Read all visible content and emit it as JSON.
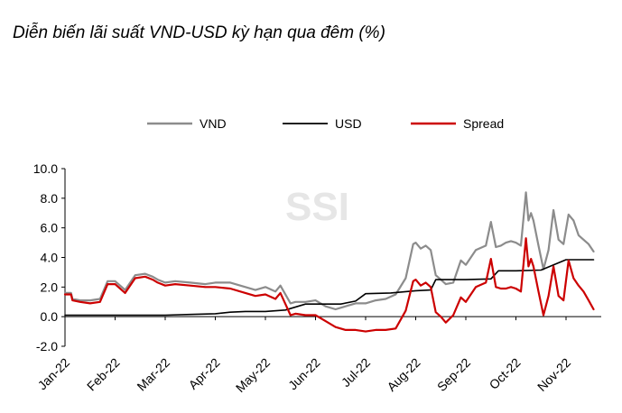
{
  "chart_data": {
    "type": "line",
    "title": "Diễn biến lãi suất VND-USD kỳ hạn qua đêm (%)",
    "watermark": "SSI",
    "xlabel": "",
    "ylabel": "",
    "ylim": [
      -2,
      10
    ],
    "yticks": [
      "10.0",
      "8.0",
      "6.0",
      "4.0",
      "2.0",
      "0.0",
      "-2.0"
    ],
    "ytick_values": [
      10,
      8,
      6,
      4,
      2,
      0,
      -2
    ],
    "xlim": [
      0,
      10.55
    ],
    "categories": [
      "Jan-22",
      "Feb-22",
      "Mar-22",
      "Apr-22",
      "May-22",
      "Jun-22",
      "Jul-22",
      "Aug-22",
      "Sep-22",
      "Oct-22",
      "Nov-22"
    ],
    "legend_position": "top",
    "series": [
      {
        "name": "VND",
        "color": "#8c8c8c",
        "x": [
          0,
          0.12,
          0.15,
          0.3,
          0.5,
          0.7,
          0.85,
          1.0,
          1.2,
          1.4,
          1.6,
          1.75,
          1.85,
          2.0,
          2.2,
          2.5,
          2.8,
          3.0,
          3.3,
          3.6,
          3.8,
          4.0,
          4.2,
          4.3,
          4.5,
          4.6,
          4.8,
          5.0,
          5.2,
          5.4,
          5.6,
          5.8,
          6.0,
          6.2,
          6.4,
          6.6,
          6.8,
          6.95,
          7.0,
          7.1,
          7.2,
          7.3,
          7.4,
          7.5,
          7.6,
          7.75,
          7.9,
          8.0,
          8.2,
          8.4,
          8.5,
          8.6,
          8.7,
          8.8,
          8.9,
          9.0,
          9.1,
          9.2,
          9.25,
          9.3,
          9.35,
          9.45,
          9.55,
          9.65,
          9.75,
          9.85,
          9.95,
          10.05,
          10.15,
          10.25,
          10.35,
          10.45,
          10.55
        ],
        "values": [
          1.6,
          1.6,
          1.2,
          1.1,
          1.1,
          1.2,
          2.4,
          2.4,
          1.8,
          2.8,
          2.9,
          2.7,
          2.5,
          2.3,
          2.4,
          2.3,
          2.2,
          2.3,
          2.3,
          2.0,
          1.8,
          2.0,
          1.7,
          2.1,
          0.9,
          1.0,
          1.0,
          1.1,
          0.7,
          0.5,
          0.7,
          0.9,
          0.9,
          1.1,
          1.2,
          1.5,
          2.6,
          4.9,
          5.0,
          4.6,
          4.8,
          4.5,
          2.8,
          2.5,
          2.2,
          2.3,
          3.8,
          3.5,
          4.5,
          4.8,
          6.4,
          4.7,
          4.8,
          5.0,
          5.1,
          5.0,
          4.8,
          8.4,
          6.5,
          7.0,
          6.5,
          4.8,
          3.2,
          4.5,
          7.2,
          5.2,
          4.9,
          6.9,
          6.5,
          5.5,
          5.2,
          4.9,
          4.4
        ]
      },
      {
        "name": "USD",
        "color": "#000000",
        "x": [
          0,
          1.0,
          2.0,
          2.5,
          3.0,
          3.3,
          3.6,
          4.0,
          4.4,
          4.8,
          5.5,
          5.8,
          6.0,
          6.5,
          7.0,
          7.3,
          7.4,
          7.6,
          8.0,
          8.5,
          8.65,
          9.0,
          9.5,
          10.0,
          10.55
        ],
        "values": [
          0.1,
          0.1,
          0.1,
          0.15,
          0.2,
          0.3,
          0.35,
          0.35,
          0.45,
          0.85,
          0.85,
          1.05,
          1.55,
          1.6,
          1.75,
          1.8,
          2.5,
          2.5,
          2.5,
          2.55,
          3.1,
          3.1,
          3.15,
          3.85,
          3.85
        ]
      },
      {
        "name": "Spread",
        "color": "#cc0000",
        "x": [
          0,
          0.12,
          0.15,
          0.3,
          0.5,
          0.7,
          0.85,
          1.0,
          1.2,
          1.4,
          1.6,
          1.75,
          1.85,
          2.0,
          2.2,
          2.5,
          2.8,
          3.0,
          3.3,
          3.6,
          3.8,
          4.0,
          4.2,
          4.3,
          4.5,
          4.6,
          4.8,
          5.0,
          5.2,
          5.4,
          5.6,
          5.8,
          6.0,
          6.2,
          6.4,
          6.6,
          6.8,
          6.95,
          7.0,
          7.1,
          7.2,
          7.3,
          7.4,
          7.5,
          7.6,
          7.75,
          7.9,
          8.0,
          8.2,
          8.4,
          8.5,
          8.6,
          8.7,
          8.8,
          8.9,
          9.0,
          9.1,
          9.2,
          9.25,
          9.3,
          9.35,
          9.45,
          9.55,
          9.65,
          9.75,
          9.85,
          9.95,
          10.05,
          10.15,
          10.25,
          10.35,
          10.45,
          10.55
        ],
        "values": [
          1.5,
          1.5,
          1.1,
          1.0,
          0.9,
          1.0,
          2.2,
          2.2,
          1.6,
          2.6,
          2.7,
          2.5,
          2.3,
          2.1,
          2.2,
          2.1,
          2.0,
          2.0,
          1.9,
          1.6,
          1.4,
          1.5,
          1.2,
          1.6,
          0.1,
          0.2,
          0.1,
          0.1,
          -0.3,
          -0.7,
          -0.9,
          -0.9,
          -1.0,
          -0.9,
          -0.9,
          -0.8,
          0.4,
          2.4,
          2.5,
          2.1,
          2.3,
          2.0,
          0.3,
          0.0,
          -0.4,
          0.1,
          1.3,
          1.0,
          2.0,
          2.3,
          3.9,
          2.0,
          1.9,
          1.9,
          2.0,
          1.9,
          1.7,
          5.3,
          3.4,
          3.9,
          3.4,
          1.7,
          0.1,
          1.4,
          3.4,
          1.4,
          1.1,
          3.8,
          2.6,
          2.1,
          1.7,
          1.1,
          0.5
        ]
      }
    ]
  }
}
